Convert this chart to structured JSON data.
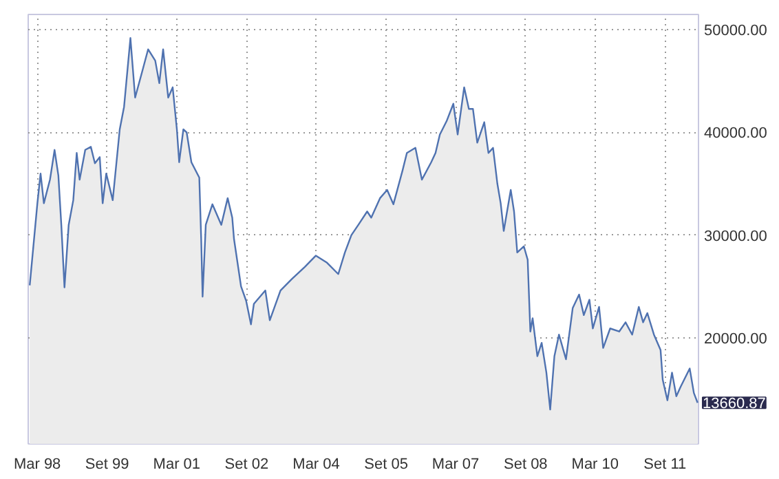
{
  "chart_data": {
    "type": "area",
    "x": [
      "1998-01-01",
      "1998-03-02",
      "1998-03-27",
      "1998-04-22",
      "1998-06-09",
      "1998-07-15",
      "1998-08-14",
      "1998-09-06",
      "1998-10-01",
      "1998-11-03",
      "1998-12-09",
      "1999-01-05",
      "1999-01-28",
      "1999-03-13",
      "1999-04-26",
      "1999-05-28",
      "1999-07-05",
      "1999-07-28",
      "1999-08-25",
      "1999-10-15",
      "1999-12-09",
      "2000-01-12",
      "2000-03-02",
      "2000-04-08",
      "2000-06-06",
      "2000-07-19",
      "2000-09-13",
      "2000-10-15",
      "2000-11-14",
      "2000-12-24",
      "2001-01-28",
      "2001-03-02",
      "2001-03-20",
      "2001-04-22",
      "2001-05-18",
      "2001-06-24",
      "2001-08-25",
      "2001-09-09",
      "2001-09-20",
      "2001-10-15",
      "2001-12-06",
      "2002-02-14",
      "2002-04-05",
      "2002-05-11",
      "2002-05-25",
      "2002-07-19",
      "2002-08-28",
      "2002-10-05",
      "2002-10-28",
      "2003-01-26",
      "2003-03-02",
      "2003-05-25",
      "2003-08-21",
      "2003-12-02",
      "2004-02-27",
      "2004-05-25",
      "2004-08-21",
      "2004-10-12",
      "2004-12-02",
      "2005-01-26",
      "2005-04-05",
      "2005-05-07",
      "2005-07-15",
      "2005-09-09",
      "2005-10-28",
      "2006-01-08",
      "2006-02-11",
      "2006-04-19",
      "2006-06-09",
      "2006-08-21",
      "2006-09-24",
      "2006-10-28",
      "2006-12-20",
      "2007-02-11",
      "2007-03-17",
      "2007-05-07",
      "2007-06-13",
      "2007-07-15",
      "2007-08-18",
      "2007-10-12",
      "2007-11-14",
      "2007-12-20",
      "2008-01-23",
      "2008-02-18",
      "2008-03-13",
      "2008-05-07",
      "2008-06-02",
      "2008-06-27",
      "2008-08-18",
      "2008-09-17",
      "2008-10-08",
      "2008-10-26",
      "2008-12-02",
      "2009-01-05",
      "2009-02-11",
      "2009-03-13",
      "2009-04-15",
      "2009-05-21",
      "2009-07-15",
      "2009-09-06",
      "2009-10-26",
      "2009-12-02",
      "2010-01-15",
      "2010-02-11",
      "2010-04-01",
      "2010-05-03",
      "2010-06-27",
      "2010-09-06",
      "2010-10-26",
      "2010-12-17",
      "2011-02-07",
      "2011-03-13",
      "2011-04-15",
      "2011-06-06",
      "2011-07-28",
      "2011-08-14",
      "2011-09-20",
      "2011-10-26",
      "2011-11-29",
      "2012-01-01",
      "2012-03-13",
      "2012-04-15",
      "2012-05-14"
    ],
    "series": [
      {
        "color": "#4f72b0",
        "values": [
          25100,
          33100,
          36000,
          33100,
          35400,
          38300,
          35800,
          31000,
          24900,
          31000,
          33400,
          38000,
          35400,
          38300,
          38600,
          37000,
          37600,
          33100,
          36000,
          33400,
          40300,
          42500,
          49200,
          43400,
          46100,
          48100,
          47000,
          44800,
          48100,
          43400,
          44400,
          40300,
          37100,
          40300,
          40000,
          37100,
          35600,
          29600,
          24000,
          31000,
          33000,
          31000,
          33600,
          31700,
          29600,
          25000,
          23600,
          21300,
          23300,
          24600,
          21700,
          24600,
          25700,
          26900,
          28000,
          27300,
          26200,
          28300,
          30000,
          31000,
          32300,
          31700,
          33600,
          34400,
          33000,
          36300,
          38000,
          38500,
          35400,
          37100,
          38000,
          39800,
          41100,
          42800,
          39800,
          44400,
          42300,
          42300,
          39000,
          41000,
          38000,
          38500,
          35000,
          33100,
          30400,
          34400,
          32300,
          28300,
          28900,
          27600,
          20600,
          21900,
          18200,
          19500,
          16600,
          13000,
          18200,
          20300,
          17900,
          22900,
          24200,
          22200,
          23700,
          20900,
          23000,
          19000,
          20900,
          20600,
          21500,
          20300,
          23000,
          21500,
          22400,
          20300,
          18800,
          15900,
          13900,
          16600,
          14300,
          15200,
          17000,
          14600,
          13660.87
        ]
      }
    ],
    "xlim": [
      "1997-12-20",
      "2012-05-21"
    ],
    "xticks": [
      {
        "value": "1998-03-01",
        "label": "Mar 98"
      },
      {
        "value": "1999-09-01",
        "label": "Set 99"
      },
      {
        "value": "2001-03-01",
        "label": "Mar 01"
      },
      {
        "value": "2002-09-01",
        "label": "Set 02"
      },
      {
        "value": "2004-03-01",
        "label": "Mar 04"
      },
      {
        "value": "2005-09-01",
        "label": "Set 05"
      },
      {
        "value": "2007-03-01",
        "label": "Mar 07"
      },
      {
        "value": "2008-09-01",
        "label": "Set 08"
      },
      {
        "value": "2010-03-01",
        "label": "Mar 10"
      },
      {
        "value": "2011-09-01",
        "label": "Set 11"
      }
    ],
    "ylim": [
      9650,
      51500
    ],
    "yticks": [
      {
        "value": 20000,
        "label": "20000.00"
      },
      {
        "value": 30000,
        "label": "30000.00"
      },
      {
        "value": 40000,
        "label": "40000.00"
      },
      {
        "value": 50000,
        "label": "50000.00"
      }
    ],
    "grid": true,
    "annotations": [
      "13660.87"
    ]
  }
}
